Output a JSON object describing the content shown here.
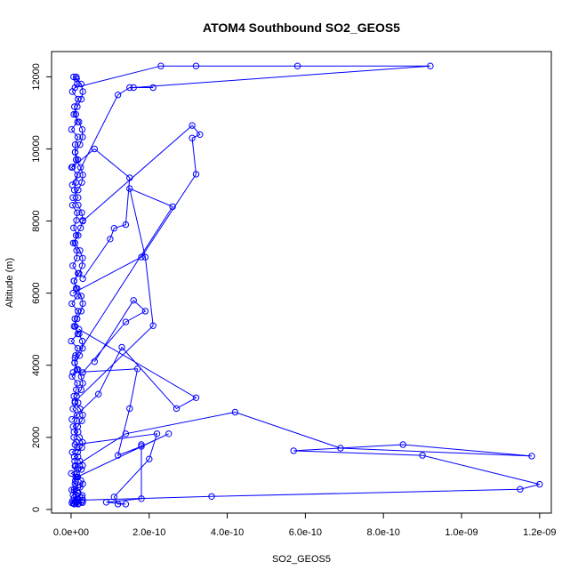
{
  "chart_data": {
    "type": "line",
    "title": "ATOM4 Southbound SO2_GEOS5",
    "xlabel": "SO2_GEOS5",
    "ylabel": "Altitude (m)",
    "xlim": [
      -5e-11,
      1.23e-09
    ],
    "ylim": [
      -100,
      12700
    ],
    "xticks": [
      0,
      2e-10,
      4e-10,
      6e-10,
      8e-10,
      1e-09,
      1.2e-09
    ],
    "xtick_labels": [
      "0.0e+00",
      "2.0e-10",
      "4.0e-10",
      "6.0e-10",
      "8.0e-10",
      "1.0e-09",
      "1.2e-09"
    ],
    "yticks": [
      0,
      2000,
      4000,
      6000,
      8000,
      10000,
      12000
    ],
    "ytick_labels": [
      "0",
      "2000",
      "4000",
      "6000",
      "8000",
      "10000",
      "12000"
    ],
    "grid": false,
    "marker": "open-circle",
    "colors": {
      "series": "#0000ff",
      "axis": "#000000"
    },
    "series": [
      {
        "x": [
          2e-12,
          1e-11,
          3e-11,
          3.6e-10,
          1.15e-09,
          1.2e-09,
          9e-10,
          5.7e-10,
          8.5e-10,
          1.18e-09,
          6.9e-10,
          4.2e-10,
          1.4e-10,
          1e-11,
          5e-12
        ],
        "y": [
          180,
          200,
          260,
          360,
          560,
          700,
          1500,
          1630,
          1800,
          1480,
          1700,
          2700,
          2100,
          1200,
          400
        ]
      },
      {
        "x": [
          1e-11,
          2.3e-10,
          3.2e-10,
          5.8e-10,
          9.2e-10,
          1.6e-10,
          2.1e-10,
          1.5e-10,
          1.2e-10,
          3e-12
        ],
        "y": [
          11700,
          12300,
          12300,
          12300,
          12300,
          11700,
          11700,
          11700,
          11500,
          9000
        ]
      },
      {
        "x": [
          3e-11,
          3.1e-10,
          3.3e-10,
          3.1e-10,
          3.2e-10,
          1.8e-10,
          5e-12
        ],
        "y": [
          8000,
          10650,
          10400,
          10300,
          9300,
          7000,
          6000
        ]
      },
      {
        "x": [
          2e-11,
          3.2e-10,
          2.7e-10,
          1.3e-10,
          7e-11,
          2e-12
        ],
        "y": [
          5000,
          3100,
          2800,
          4500,
          3200,
          2500
        ]
      },
      {
        "x": [
          1e-11,
          2.1e-10,
          1.9e-10,
          1.5e-10,
          2.6e-10,
          1e-11
        ],
        "y": [
          3000,
          5100,
          7000,
          8900,
          8400,
          4200
        ]
      },
      {
        "x": [
          5e-12,
          1.7e-10,
          1.5e-10,
          1.2e-10,
          1.8e-10,
          2.5e-10,
          1.5e-11
        ],
        "y": [
          3800,
          3900,
          2800,
          1500,
          1750,
          2100,
          900
        ]
      },
      {
        "x": [
          1.8e-10,
          1.8e-10,
          9e-11,
          1.4e-10,
          1.2e-10,
          1.1e-10,
          2e-10,
          2.2e-10,
          1e-11
        ],
        "y": [
          1800,
          300,
          200,
          150,
          150,
          350,
          1400,
          2100,
          1800
        ]
      },
      {
        "x": [
          6e-11,
          1.6e-10,
          1.9e-10,
          1.4e-10,
          3e-11
        ],
        "y": [
          4100,
          5800,
          5500,
          5200,
          3800
        ]
      },
      {
        "x": [
          3e-11,
          1e-10,
          1.1e-10,
          1.4e-10,
          1.5e-10,
          6e-11,
          4e-12
        ],
        "y": [
          6400,
          7500,
          7800,
          7900,
          9200,
          10000,
          9500
        ]
      }
    ],
    "near_zero_profile": {
      "x_max": 3e-11,
      "altitudes": [
        150,
        170,
        190,
        210,
        240,
        280,
        330,
        390,
        460,
        540,
        620,
        710,
        800,
        900,
        1000,
        1110,
        1220,
        1340,
        1460,
        1590,
        1720,
        1860,
        2000,
        2150,
        2300,
        2460,
        2620,
        2790,
        2960,
        3140,
        3320,
        3500,
        3690,
        3880,
        4070,
        4270,
        4470,
        4670,
        4870,
        5080,
        5290,
        5500,
        5710,
        5920,
        6130,
        6340,
        6550,
        6760,
        6970,
        7180,
        7390,
        7600,
        7810,
        8020,
        8230,
        8440,
        8650,
        8860,
        9070,
        9280,
        9490,
        9700,
        9910,
        10120,
        10330,
        10540,
        10750,
        10960,
        11170,
        11380,
        11590,
        11800,
        11950,
        12000
      ]
    }
  }
}
